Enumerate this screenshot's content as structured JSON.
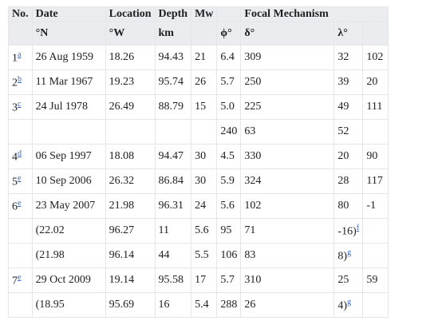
{
  "table": {
    "header": [
      [
        "No.",
        "Date",
        "Location",
        "Depth",
        "Mw",
        null,
        "Focal Mechanism"
      ],
      [
        null,
        "°N",
        "°W",
        "km",
        null,
        "ϕ°",
        "δ°",
        "λ°",
        null
      ]
    ],
    "rows": [
      [
        {
          "text": "1",
          "note": "a"
        },
        "26 Aug 1959",
        "18.26",
        "94.43",
        "21",
        "6.4",
        "309",
        "32",
        "102"
      ],
      [
        {
          "text": "2",
          "note": "b"
        },
        "11 Mar 1967",
        "19.23",
        "95.74",
        "26",
        "5.7",
        "250",
        "39",
        "20"
      ],
      [
        {
          "text": "3",
          "note": "c"
        },
        "24 Jul 1978",
        "26.49",
        "88.79",
        "15",
        "5.0",
        "225",
        "49",
        "111"
      ],
      [
        null,
        null,
        null,
        null,
        null,
        "240",
        "63",
        "52",
        null
      ],
      [
        {
          "text": "4",
          "note": "d"
        },
        "06 Sep 1997",
        "18.08",
        "94.47",
        "30",
        "4.5",
        "330",
        "20",
        "90"
      ],
      [
        {
          "text": "5",
          "note": "e"
        },
        "10 Sep 2006",
        "26.32",
        "86.84",
        "30",
        "5.9",
        "324",
        "28",
        "117"
      ],
      [
        {
          "text": "6",
          "note": "e"
        },
        "23 May 2007",
        "21.98",
        "96.31",
        "24",
        "5.6",
        "102",
        "80",
        "-1"
      ],
      [
        null,
        "(22.02",
        "96.27",
        "11",
        "5.6",
        "95",
        "71",
        {
          "text": "-16)",
          "note": "f"
        },
        null
      ],
      [
        null,
        "(21.98",
        "96.14",
        "44",
        "5.5",
        "106",
        "83",
        {
          "text": "8)",
          "note": "g"
        },
        null
      ],
      [
        {
          "text": "7",
          "note": "e"
        },
        "29 Oct 2009",
        "19.14",
        "95.58",
        "17",
        "5.7",
        "310",
        "25",
        "59"
      ],
      [
        null,
        "(18.95",
        "95.69",
        "16",
        "5.4",
        "288",
        "26",
        {
          "text": "4)",
          "note": "g"
        },
        null
      ]
    ]
  }
}
